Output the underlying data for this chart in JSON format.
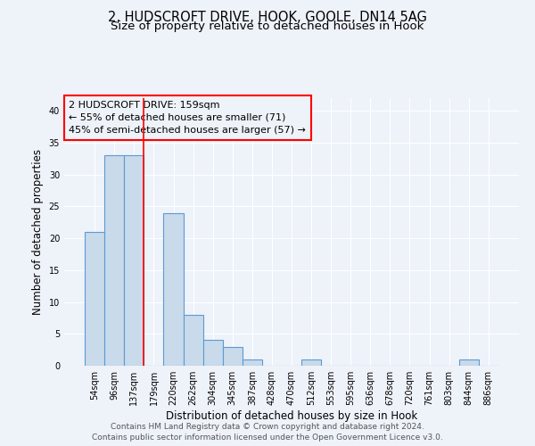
{
  "title_line1": "2, HUDSCROFT DRIVE, HOOK, GOOLE, DN14 5AG",
  "title_line2": "Size of property relative to detached houses in Hook",
  "xlabel": "Distribution of detached houses by size in Hook",
  "ylabel": "Number of detached properties",
  "categories": [
    "54sqm",
    "96sqm",
    "137sqm",
    "179sqm",
    "220sqm",
    "262sqm",
    "304sqm",
    "345sqm",
    "387sqm",
    "428sqm",
    "470sqm",
    "512sqm",
    "553sqm",
    "595sqm",
    "636sqm",
    "678sqm",
    "720sqm",
    "761sqm",
    "803sqm",
    "844sqm",
    "886sqm"
  ],
  "values": [
    21,
    33,
    33,
    0,
    24,
    8,
    4,
    3,
    1,
    0,
    0,
    1,
    0,
    0,
    0,
    0,
    0,
    0,
    0,
    1,
    0
  ],
  "bar_color": "#c9daea",
  "bar_edge_color": "#5b9bd5",
  "bar_edge_width": 0.8,
  "red_line_x": 2.5,
  "annotation_box_text": "2 HUDSCROFT DRIVE: 159sqm\n← 55% of detached houses are smaller (71)\n45% of semi-detached houses are larger (57) →",
  "ylim": [
    0,
    42
  ],
  "yticks": [
    0,
    5,
    10,
    15,
    20,
    25,
    30,
    35,
    40
  ],
  "background_color": "#eef2f9",
  "grid_color": "#ffffff",
  "footer_line1": "Contains HM Land Registry data © Crown copyright and database right 2024.",
  "footer_line2": "Contains public sector information licensed under the Open Government Licence v3.0.",
  "title_fontsize": 10.5,
  "subtitle_fontsize": 9.5,
  "axis_label_fontsize": 8.5,
  "tick_fontsize": 7,
  "annotation_fontsize": 8,
  "footer_fontsize": 6.5
}
